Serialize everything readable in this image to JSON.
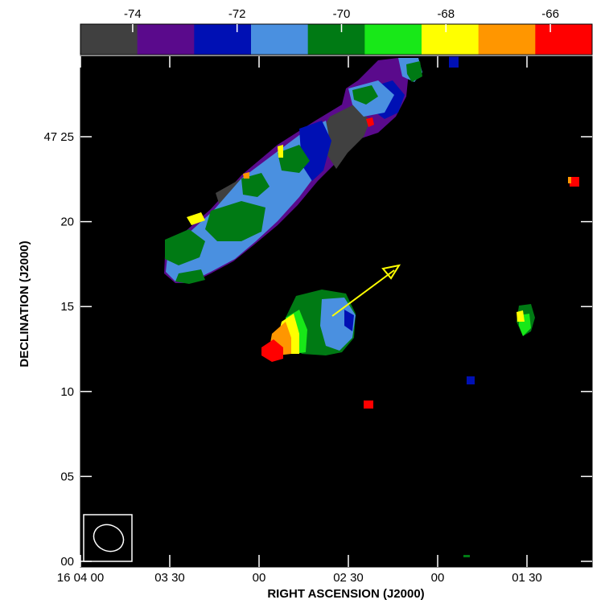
{
  "chart_data": {
    "type": "heatmap",
    "title": "",
    "xlabel": "RIGHT ASCENSION (J2000)",
    "ylabel": "DECLINATION (J2000)",
    "x_ticks": [
      "16 04 00",
      "03 30",
      "00",
      "02 30",
      "00",
      "01 30"
    ],
    "y_ticks": [
      "00",
      "05",
      "10",
      "15",
      "20",
      "47 25"
    ],
    "y_tick_values_arcmin": [
      0,
      5,
      10,
      15,
      20,
      25
    ],
    "colorbar": {
      "tick_labels": [
        "-74",
        "-72",
        "-70",
        "-68",
        "-66"
      ],
      "tick_values": [
        -74,
        -72,
        -70,
        -68,
        -66
      ],
      "range": [
        -75.0,
        -65.2
      ],
      "colors": [
        "#404040",
        "#5a0a8c",
        "#0010b4",
        "#4a90e0",
        "#007a14",
        "#18e818",
        "#ffff00",
        "#ff9600",
        "#ff0000"
      ]
    },
    "sources": [
      {
        "id": "extended-jet",
        "value_range": [
          -75,
          -66
        ]
      },
      {
        "id": "bright-core",
        "value_range": [
          -71,
          -66
        ]
      },
      {
        "id": "east-source",
        "value_range": [
          -70,
          -68
        ]
      }
    ],
    "annotation_arrow_color": "#ffff00",
    "beam_ellipse": true,
    "background": "#000000"
  }
}
